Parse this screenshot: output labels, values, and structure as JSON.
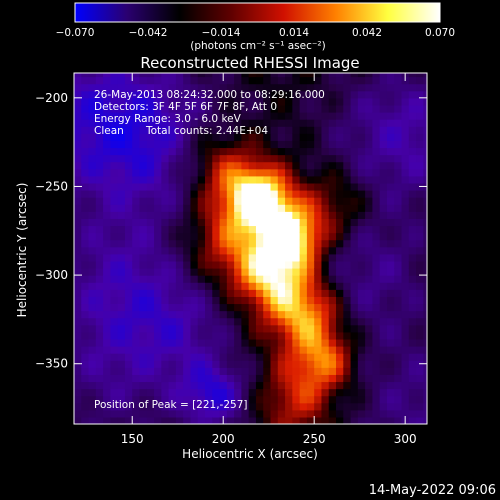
{
  "chart_data": {
    "type": "heatmap",
    "title": "Reconstructed RHESSI Image",
    "xlabel": "Heliocentric X (arcsec)",
    "ylabel": "Heliocentric Y (arcsec)",
    "xlim": [
      118,
      312
    ],
    "ylim": [
      -384,
      -186
    ],
    "xticks": [
      150,
      200,
      250,
      300
    ],
    "yticks": [
      -200,
      -250,
      -300,
      -350
    ],
    "colorbar": {
      "range": [
        -0.07,
        0.07
      ],
      "ticks": [
        "-0.070",
        "-0.042",
        "-0.014",
        "0.014",
        "0.042",
        "0.070"
      ],
      "units_label": "(photons cm⁻² s⁻¹ asec⁻²)",
      "colors": [
        "#0000ff",
        "#2a0070",
        "#000000",
        "#600000",
        "#d01000",
        "#ff8000",
        "#ffff40",
        "#ffffff"
      ]
    },
    "annotations": {
      "time_range": "26-May-2013 08:24:32.000 to 08:29:16.000",
      "detectors": "Detectors: 3F 4F 5F 6F 7F 8F, Att 0",
      "energy": "Energy Range: 3.0 - 6.0 keV",
      "clean": "Clean",
      "counts": "Total counts: 2.44E+04",
      "peak": "Position of Peak = [221,-257]"
    },
    "peak": [
      221,
      -257
    ]
  },
  "footer": {
    "timestamp": "14-May-2022 09:06"
  }
}
